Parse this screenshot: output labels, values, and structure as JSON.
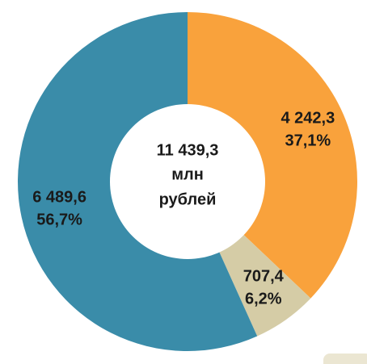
{
  "chart_data": {
    "type": "donut",
    "categories": [
      null,
      null,
      null
    ],
    "values": [
      4242.3,
      707.4,
      6489.6
    ],
    "value_labels": [
      "4 242,3",
      "707,4",
      "6 489,6"
    ],
    "percentages": [
      37.1,
      6.2,
      56.7
    ],
    "percentage_labels": [
      "37,1%",
      "6,2%",
      "56,7%"
    ],
    "colors": [
      "#f9a23c",
      "#d5cca6",
      "#3a8ca9"
    ],
    "center_text": [
      "11 439,3",
      "млн",
      "рублей"
    ]
  }
}
